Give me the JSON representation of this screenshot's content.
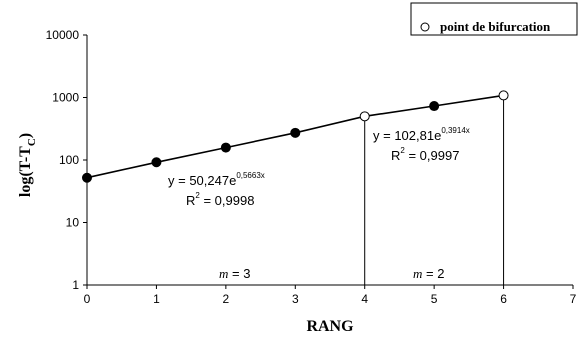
{
  "chart_data": {
    "type": "line",
    "xlabel": "RANG",
    "ylabel": "log(T-T",
    "ylabel_subscript": "C",
    "ylabel_close": ")",
    "y_scale": "log",
    "xlim": [
      0,
      7
    ],
    "ylim": [
      1,
      10000
    ],
    "x_ticks": [
      "0",
      "1",
      "2",
      "3",
      "4",
      "5",
      "6",
      "7"
    ],
    "y_ticks": [
      "1",
      "10",
      "100",
      "1000",
      "10000"
    ],
    "grid": false,
    "legend": {
      "position": "top-right",
      "marker": "open-circle",
      "label": "point de bifurcation"
    },
    "series": [
      {
        "points": [
          {
            "x": 0,
            "y": 52,
            "marker": "filled"
          },
          {
            "x": 1,
            "y": 92,
            "marker": "filled"
          },
          {
            "x": 2,
            "y": 158,
            "marker": "filled"
          },
          {
            "x": 3,
            "y": 272,
            "marker": "filled"
          },
          {
            "x": 4,
            "y": 500,
            "marker": "open"
          },
          {
            "x": 5,
            "y": 730,
            "marker": "filled"
          },
          {
            "x": 6,
            "y": 1080,
            "marker": "open"
          }
        ]
      }
    ],
    "dividers": [
      4,
      6
    ],
    "annotations": {
      "eq1_base": "y = 50,247e",
      "eq1_exp": "0,5663x",
      "eq1_r_base": "R",
      "eq1_r_exp": "2",
      "eq1_r_val": " = 0,9998",
      "eq2_base": "y = 102,81e",
      "eq2_exp": "0,3914x",
      "eq2_r_base": "R",
      "eq2_r_exp": "2",
      "eq2_r_val": " = 0,9997",
      "m1_var": "m",
      "m1_val": " = 3",
      "m2_var": "m",
      "m2_val": " = 2"
    }
  }
}
